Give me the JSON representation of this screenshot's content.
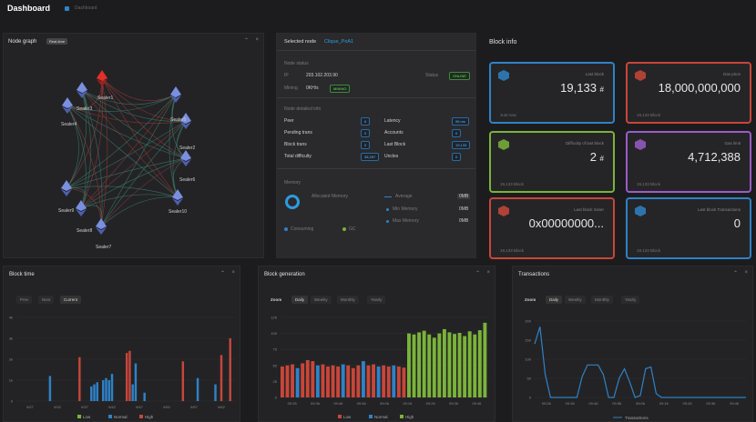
{
  "header": {
    "title": "Dashboard",
    "breadcrumb": "Dashboard"
  },
  "node_graph": {
    "title": "Node graph",
    "badge": "Real-time",
    "nodes": [
      "Sealer1",
      "Sealer3",
      "Sealer4",
      "Sealer5",
      "Sealer2",
      "Sealer6",
      "Sealer10",
      "Sealer9",
      "Sealer8",
      "Sealer7"
    ]
  },
  "selected_node": {
    "label": "Selected node",
    "value": "Clique_PoA1",
    "status_title": "Node status",
    "ip_label": "IP",
    "ip_value": "203.102.203.90",
    "status_label": "Status",
    "status_value": "ONLINE",
    "mining_label": "Mining",
    "mining_value": "0KH/s",
    "mining_badge": "MINING",
    "detail_title": "Node detailed info",
    "rows": [
      {
        "label": "Peer",
        "value": "6",
        "label2": "Latency",
        "value2": "96 ms"
      },
      {
        "label": "Pending trans",
        "value": "0",
        "label2": "Accounts",
        "value2": "0"
      },
      {
        "label": "Block trans",
        "value": "0",
        "label2": "Last Block",
        "value2": "19,133"
      },
      {
        "label": "Total difficulty",
        "value": "38,267",
        "label2": "Uncles",
        "value2": "0"
      }
    ],
    "memory_title": "Memory",
    "allocated_label": "Allocated Memory",
    "consuming_label": "Consuming",
    "gc_label": "GC",
    "average_label": "Average",
    "average_value": "0MB",
    "min_label": "Min Memory",
    "min_value": "0MB",
    "max_label": "Max Memory",
    "max_value": "0MB"
  },
  "block_info": {
    "title": "Block info",
    "cards": [
      {
        "label": "Last block",
        "value": "19,133",
        "unit": "#",
        "footer": "Just now",
        "color": "#2f82c8"
      },
      {
        "label": "Gas price",
        "value": "18,000,000,000",
        "unit": "",
        "footer": "19,133 Block",
        "color": "#c8463a"
      },
      {
        "label": "Difficulty of last block",
        "value": "2",
        "unit": "#",
        "footer": "19,133 Block",
        "color": "#7ab33a"
      },
      {
        "label": "Gas limit",
        "value": "4,712,388",
        "unit": "",
        "footer": "19,133 Block",
        "color": "#9a5cc8"
      },
      {
        "label": "Last block miner",
        "value": "0x00000000...",
        "unit": "",
        "footer": "19,133 Block",
        "color": "#c8463a"
      },
      {
        "label": "Last block Transactions",
        "value": "0",
        "unit": "",
        "footer": "19,133 Block",
        "color": "#2f82c8"
      }
    ]
  },
  "block_time": {
    "title": "Block time",
    "tabs": [
      "Prev",
      "Next",
      "Current"
    ],
    "legend": [
      "Low",
      "Normal",
      "High"
    ]
  },
  "block_generation": {
    "title": "Block generation",
    "zoom_label": "Zoom",
    "ranges": [
      "Daily",
      "Weekly",
      "Monthly",
      "Yearly"
    ],
    "legend": [
      "Low",
      "Normal",
      "High"
    ]
  },
  "transactions": {
    "title": "Transactions",
    "zoom_label": "Zoom",
    "ranges": [
      "Daily",
      "Weekly",
      "Monthly",
      "Yearly"
    ],
    "legend": [
      "Transactions"
    ]
  },
  "colors": {
    "low": "#7ab33a",
    "normal": "#2f82c8",
    "high": "#c8463a",
    "accent": "#2f82c8"
  },
  "chart_data": [
    {
      "type": "bar",
      "title": "Block time",
      "yticks": [
        "0",
        "1k",
        "2k",
        "3k",
        "4k"
      ],
      "ylim": [
        0,
        4000
      ],
      "xticks": [
        "9/27",
        "9/32",
        "9/37",
        "9/42",
        "9/47",
        "9/52",
        "9/57",
        "9/62"
      ],
      "series": [
        {
          "name": "Low",
          "values": [
            0,
            0,
            0,
            0,
            0,
            0,
            0,
            0,
            0,
            0,
            0,
            0,
            0,
            0,
            0,
            0,
            0,
            0,
            0,
            0,
            0,
            0,
            0,
            0,
            0,
            0,
            0,
            0,
            0,
            0,
            0,
            0,
            0,
            0,
            0,
            0,
            0,
            0,
            0,
            0,
            0,
            0,
            0,
            0,
            0,
            0,
            0,
            0,
            0,
            0,
            0,
            0,
            0,
            0,
            0,
            0,
            0,
            0,
            0,
            0,
            0,
            0,
            0,
            0,
            0,
            0,
            0,
            0,
            0,
            0,
            0,
            0,
            0,
            0
          ]
        },
        {
          "name": "Normal",
          "values": [
            0,
            0,
            0,
            0,
            0,
            0,
            0,
            0,
            0,
            0,
            0,
            1200,
            0,
            0,
            0,
            0,
            0,
            0,
            0,
            0,
            0,
            0,
            0,
            0,
            0,
            700,
            800,
            900,
            0,
            1000,
            1100,
            1000,
            1300,
            0,
            0,
            0,
            0,
            0,
            0,
            800,
            1800,
            0,
            0,
            400,
            0,
            0,
            0,
            0,
            0,
            0,
            0,
            0,
            0,
            0,
            0,
            0,
            0,
            0,
            0,
            0,
            0,
            1100,
            0,
            0,
            0,
            0,
            0,
            800,
            0,
            0,
            0,
            0,
            0,
            0
          ]
        },
        {
          "name": "High",
          "values": [
            0,
            0,
            0,
            0,
            0,
            0,
            0,
            0,
            0,
            0,
            0,
            0,
            0,
            0,
            0,
            0,
            0,
            0,
            0,
            0,
            0,
            2100,
            0,
            0,
            0,
            0,
            0,
            0,
            0,
            0,
            0,
            0,
            0,
            0,
            0,
            0,
            0,
            2300,
            2400,
            0,
            0,
            0,
            0,
            0,
            0,
            0,
            0,
            0,
            0,
            0,
            0,
            0,
            0,
            0,
            0,
            0,
            1900,
            0,
            0,
            0,
            0,
            0,
            0,
            0,
            0,
            0,
            0,
            0,
            0,
            2200,
            0,
            0,
            3000,
            0
          ]
        }
      ]
    },
    {
      "type": "bar",
      "title": "Block generation",
      "yticks": [
        "0",
        "25",
        "50",
        "75",
        "100",
        "125"
      ],
      "ylim": [
        0,
        150
      ],
      "xticks": [
        "09:26",
        "09:36",
        "09:46",
        "09:56",
        "09:06",
        "09:16",
        "09:26",
        "09:36",
        "09:46"
      ],
      "series": [
        {
          "name": "Low",
          "values": [
            0,
            0,
            0,
            0,
            0,
            0,
            0,
            0,
            0,
            0,
            0,
            0,
            0,
            0,
            0,
            0,
            0,
            0,
            0,
            0,
            0,
            0,
            0,
            0,
            0,
            0,
            0,
            0,
            0,
            0,
            0,
            0,
            0,
            0,
            0,
            0,
            0,
            0,
            0,
            0,
            0,
            0,
            0,
            0,
            0,
            0,
            0,
            0,
            0,
            0,
            0,
            0,
            0,
            0,
            0,
            0,
            0,
            0,
            0,
            0,
            0,
            0,
            0,
            0,
            0,
            0,
            0,
            0,
            0,
            0,
            0,
            0,
            0,
            0,
            0,
            0,
            0,
            0,
            0,
            0
          ]
        },
        {
          "name": "Normal",
          "values": [
            0,
            0,
            0,
            0,
            0,
            0,
            0,
            0,
            0,
            0,
            0,
            0,
            0,
            0,
            0,
            0,
            0,
            0,
            0,
            0,
            0,
            0,
            0,
            0,
            0,
            0,
            0,
            0,
            0,
            0,
            0,
            0,
            0,
            0,
            0,
            0,
            0,
            0,
            0,
            0,
            0,
            0,
            0,
            0,
            0,
            0,
            0,
            0,
            0,
            0,
            0,
            0,
            0,
            0,
            0,
            0,
            0,
            0,
            0,
            0,
            0,
            0,
            0,
            0,
            0,
            0,
            0,
            0,
            0,
            0,
            0,
            0,
            0,
            0,
            0,
            0,
            0,
            0,
            0,
            0
          ]
        },
        {
          "name": "High",
          "values": [
            0,
            0,
            0,
            0,
            0,
            0,
            0,
            0,
            0,
            0,
            0,
            0,
            0,
            0,
            0,
            0,
            0,
            0,
            0,
            0,
            0,
            0,
            0,
            0,
            0,
            0,
            0,
            0,
            0,
            0,
            0,
            0,
            0,
            0,
            0,
            0,
            0,
            0,
            0,
            0,
            0,
            0,
            0,
            0,
            0,
            0,
            0,
            0,
            0,
            0,
            0,
            0,
            0,
            0,
            0,
            0,
            0,
            0,
            0,
            0,
            0,
            0,
            0,
            0,
            0,
            0,
            0,
            0,
            0,
            0,
            0,
            0,
            0,
            0,
            0,
            0,
            0,
            0,
            0,
            0
          ]
        }
      ],
      "bars": [
        [
          "high",
          58
        ],
        [
          "high",
          60
        ],
        [
          "high",
          62
        ],
        [
          "normal",
          55
        ],
        [
          "high",
          64
        ],
        [
          "high",
          70
        ],
        [
          "high",
          68
        ],
        [
          "normal",
          60
        ],
        [
          "high",
          62
        ],
        [
          "high",
          58
        ],
        [
          "high",
          60
        ],
        [
          "high",
          58
        ],
        [
          "normal",
          62
        ],
        [
          "high",
          60
        ],
        [
          "high",
          55
        ],
        [
          "high",
          60
        ],
        [
          "normal",
          68
        ],
        [
          "high",
          60
        ],
        [
          "high",
          62
        ],
        [
          "normal",
          58
        ],
        [
          "high",
          60
        ],
        [
          "high",
          58
        ],
        [
          "normal",
          60
        ],
        [
          "high",
          58
        ],
        [
          "high",
          56
        ],
        [
          "low",
          120
        ],
        [
          "low",
          118
        ],
        [
          "low",
          122
        ],
        [
          "low",
          125
        ],
        [
          "low",
          118
        ],
        [
          "low",
          112
        ],
        [
          "low",
          120
        ],
        [
          "low",
          128
        ],
        [
          "low",
          122
        ],
        [
          "low",
          119
        ],
        [
          "low",
          121
        ],
        [
          "low",
          115
        ],
        [
          "low",
          124
        ],
        [
          "low",
          118
        ],
        [
          "low",
          126
        ],
        [
          "low",
          140
        ]
      ]
    },
    {
      "type": "line",
      "title": "Transactions",
      "yticks": [
        "0",
        "50",
        "100",
        "150",
        "200"
      ],
      "ylim": [
        0,
        200
      ],
      "xticks": [
        "09:26",
        "09:36",
        "09:46",
        "09:56",
        "09:06",
        "09:16",
        "09:26",
        "09:36",
        "09:46"
      ],
      "series": [
        {
          "name": "Transactions",
          "values": [
            140,
            185,
            60,
            0,
            0,
            0,
            0,
            0,
            0,
            55,
            85,
            85,
            85,
            60,
            0,
            0,
            50,
            75,
            40,
            0,
            5,
            75,
            80,
            10,
            0,
            0,
            0,
            0,
            0,
            0,
            0,
            0,
            0,
            0,
            0,
            0,
            0,
            0,
            0,
            0,
            0
          ]
        }
      ]
    }
  ]
}
